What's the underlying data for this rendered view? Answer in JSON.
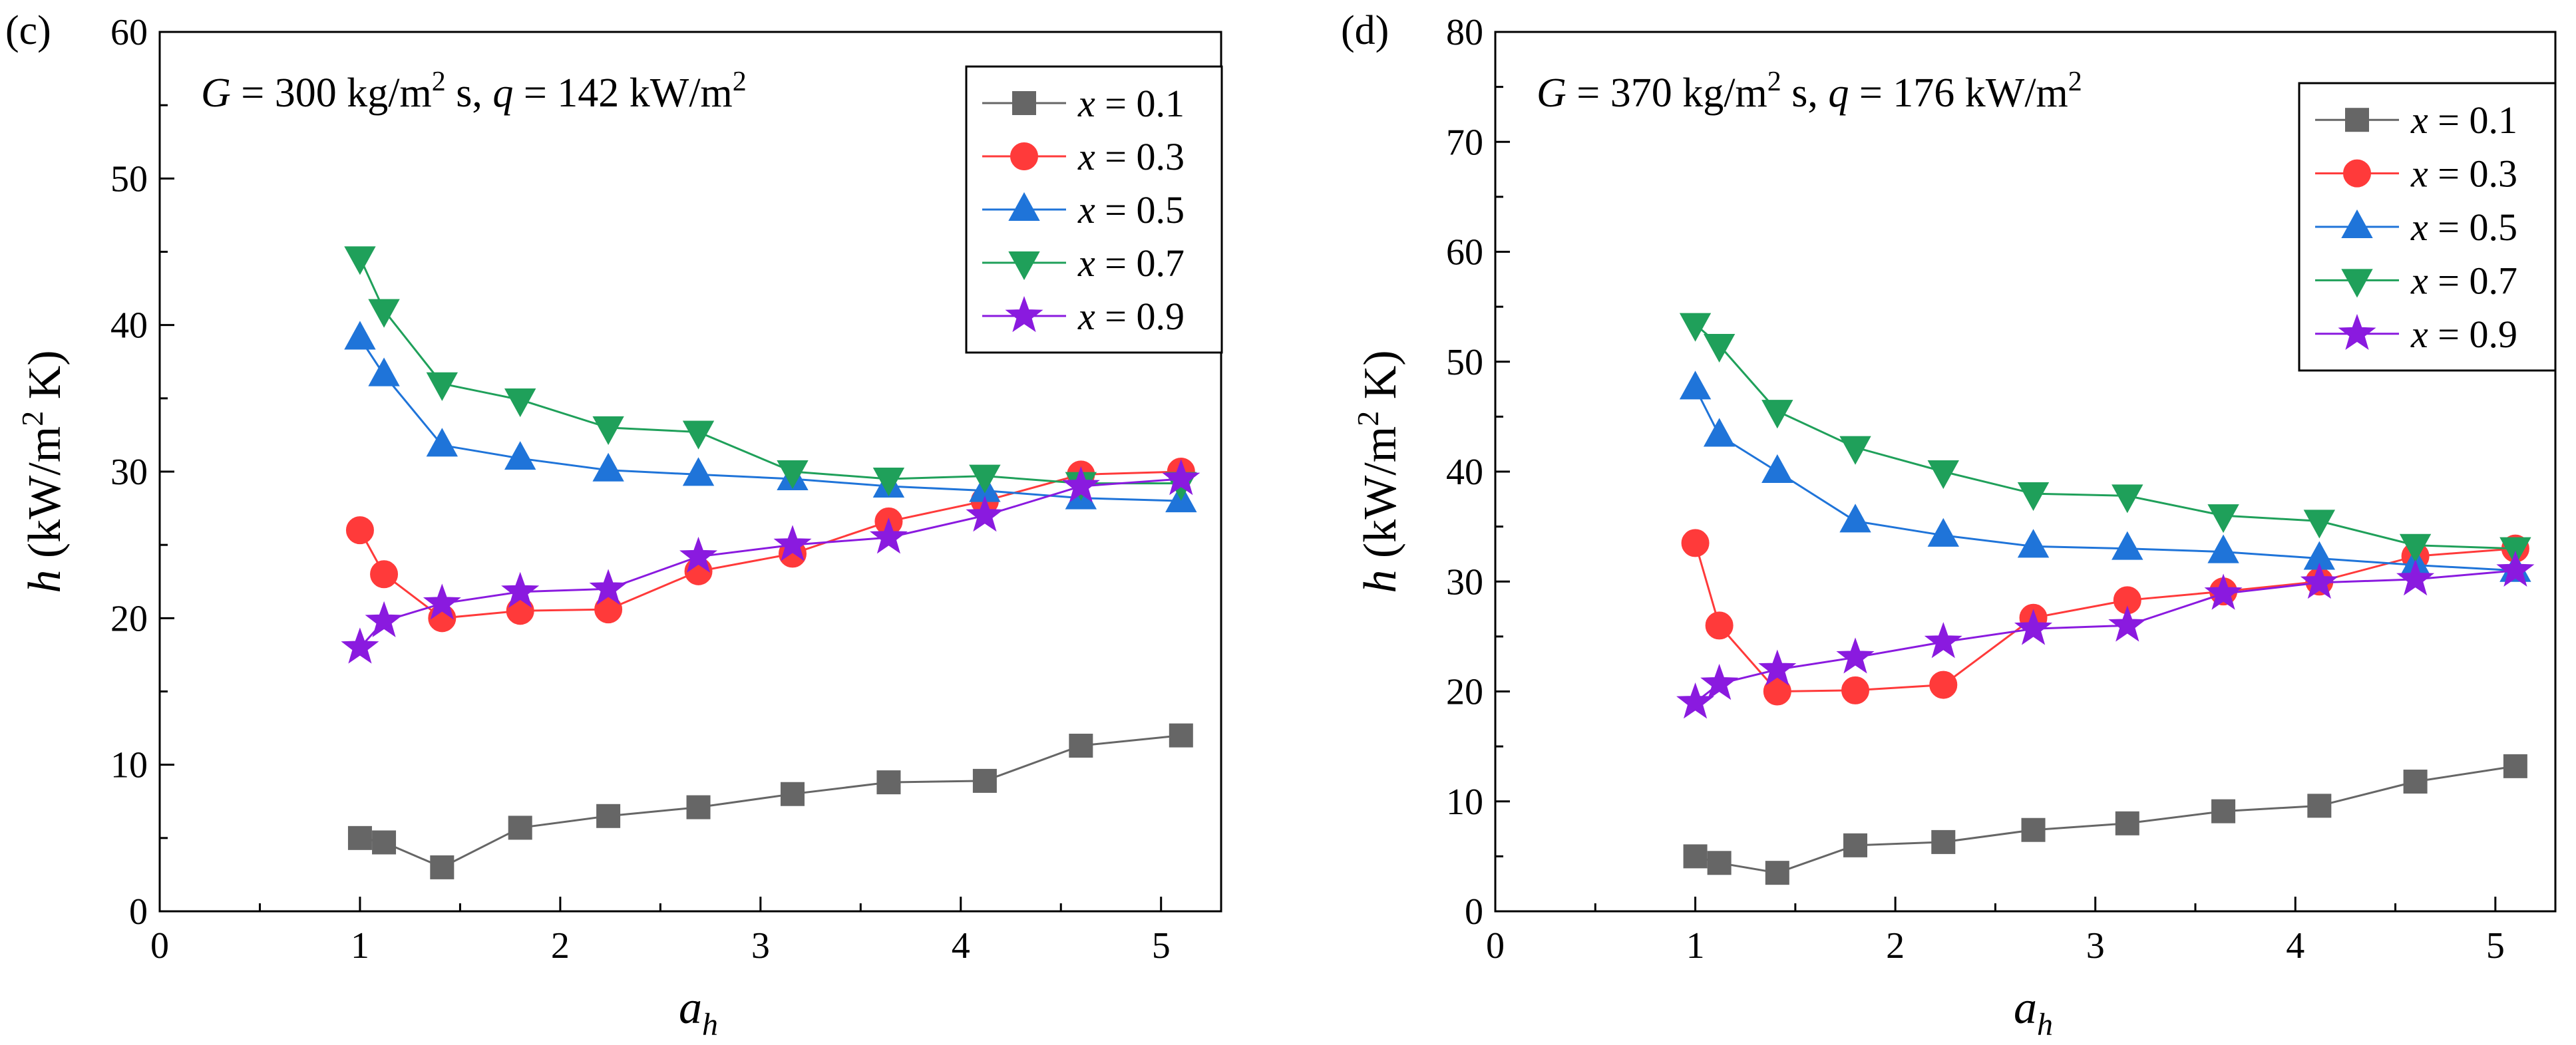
{
  "chart_data": [
    {
      "type": "line",
      "panel_label": "(c)",
      "annotation": {
        "G_sym": "G",
        "G_val": " = 300 kg/m",
        "G_unit_sup": "2",
        "s_sep": " s, ",
        "q_sym": "q",
        "q_val": " = 142 kW/m",
        "q_unit_sup": "2"
      },
      "xlabel": "a",
      "xlabel_sub": "h",
      "ylabel": "h",
      "ylabel_text": " (kW/m",
      "ylabel_sup": "2",
      "ylabel_end": " K)",
      "xlim": [
        0,
        5.3
      ],
      "ylim": [
        0,
        60
      ],
      "xticks": [
        0,
        1,
        2,
        3,
        4,
        5
      ],
      "yticks": [
        0,
        10,
        20,
        30,
        40,
        50,
        60
      ],
      "x": [
        1.0,
        1.12,
        1.41,
        1.8,
        2.24,
        2.69,
        3.16,
        3.64,
        4.12,
        4.6,
        5.1
      ],
      "series": [
        {
          "name": "x = 0.1",
          "var": "x",
          "eq": " = 0.1",
          "marker": "square",
          "color": "#666666",
          "values": [
            5.0,
            4.7,
            3.0,
            5.7,
            6.5,
            7.1,
            8.0,
            8.8,
            8.9,
            11.3,
            12.0
          ]
        },
        {
          "name": "x = 0.3",
          "var": "x",
          "eq": " = 0.3",
          "marker": "circle",
          "color": "#ff3a3a",
          "values": [
            26.0,
            23.0,
            20.0,
            20.5,
            20.6,
            23.2,
            24.4,
            26.6,
            28.0,
            29.8,
            30.0
          ]
        },
        {
          "name": "x = 0.5",
          "var": "x",
          "eq": " = 0.5",
          "marker": "triangle-up",
          "color": "#1f74d9",
          "values": [
            39.1,
            36.6,
            31.8,
            30.9,
            30.1,
            29.8,
            29.5,
            29.0,
            28.7,
            28.2,
            28.0
          ]
        },
        {
          "name": "x = 0.7",
          "var": "x",
          "eq": " = 0.7",
          "marker": "triangle-down",
          "color": "#1fa05a",
          "values": [
            44.6,
            41.0,
            36.0,
            34.9,
            33.0,
            32.7,
            30.0,
            29.5,
            29.7,
            29.2,
            29.2
          ]
        },
        {
          "name": "x = 0.9",
          "var": "x",
          "eq": " = 0.9",
          "marker": "star",
          "color": "#8a1adf",
          "values": [
            18.0,
            19.8,
            21.0,
            21.8,
            22.0,
            24.2,
            25.0,
            25.5,
            27.0,
            29.0,
            29.5
          ]
        }
      ]
    },
    {
      "type": "line",
      "panel_label": "(d)",
      "annotation": {
        "G_sym": "G",
        "G_val": " = 370 kg/m",
        "G_unit_sup": "2",
        "s_sep": " s, ",
        "q_sym": "q",
        "q_val": " = 176 kW/m",
        "q_unit_sup": "2"
      },
      "xlabel": "a",
      "xlabel_sub": "h",
      "ylabel": "h",
      "ylabel_text": " (kW/m",
      "ylabel_sup": "2",
      "ylabel_end": " K)",
      "xlim": [
        0,
        5.3
      ],
      "ylim": [
        0,
        80
      ],
      "xticks": [
        0,
        1,
        2,
        3,
        4,
        5
      ],
      "yticks": [
        0,
        10,
        20,
        30,
        40,
        50,
        60,
        70,
        80
      ],
      "x": [
        1.0,
        1.12,
        1.41,
        1.8,
        2.24,
        2.69,
        3.16,
        3.64,
        4.12,
        4.6,
        5.1
      ],
      "series": [
        {
          "name": "x = 0.1",
          "var": "x",
          "eq": " = 0.1",
          "marker": "square",
          "color": "#666666",
          "values": [
            5.0,
            4.4,
            3.5,
            6.0,
            6.3,
            7.4,
            8.0,
            9.1,
            9.6,
            11.8,
            13.2
          ]
        },
        {
          "name": "x = 0.3",
          "var": "x",
          "eq": " = 0.3",
          "marker": "circle",
          "color": "#ff3a3a",
          "values": [
            33.5,
            26.0,
            20.0,
            20.1,
            20.6,
            26.7,
            28.3,
            29.1,
            30.0,
            32.3,
            33.0
          ]
        },
        {
          "name": "x = 0.5",
          "var": "x",
          "eq": " = 0.5",
          "marker": "triangle-up",
          "color": "#1f74d9",
          "values": [
            47.6,
            43.3,
            40.0,
            35.5,
            34.2,
            33.2,
            33.0,
            32.7,
            32.1,
            31.5,
            31.0
          ]
        },
        {
          "name": "x = 0.7",
          "var": "x",
          "eq": " = 0.7",
          "marker": "triangle-down",
          "color": "#1fa05a",
          "values": [
            53.4,
            51.5,
            45.5,
            42.2,
            40.0,
            38.0,
            37.8,
            36.0,
            35.5,
            33.3,
            33.0
          ]
        },
        {
          "name": "x = 0.9",
          "var": "x",
          "eq": " = 0.9",
          "marker": "star",
          "color": "#8a1adf",
          "values": [
            19.0,
            20.7,
            22.0,
            23.1,
            24.5,
            25.7,
            26.0,
            28.9,
            29.9,
            30.2,
            31.0
          ]
        }
      ]
    }
  ]
}
